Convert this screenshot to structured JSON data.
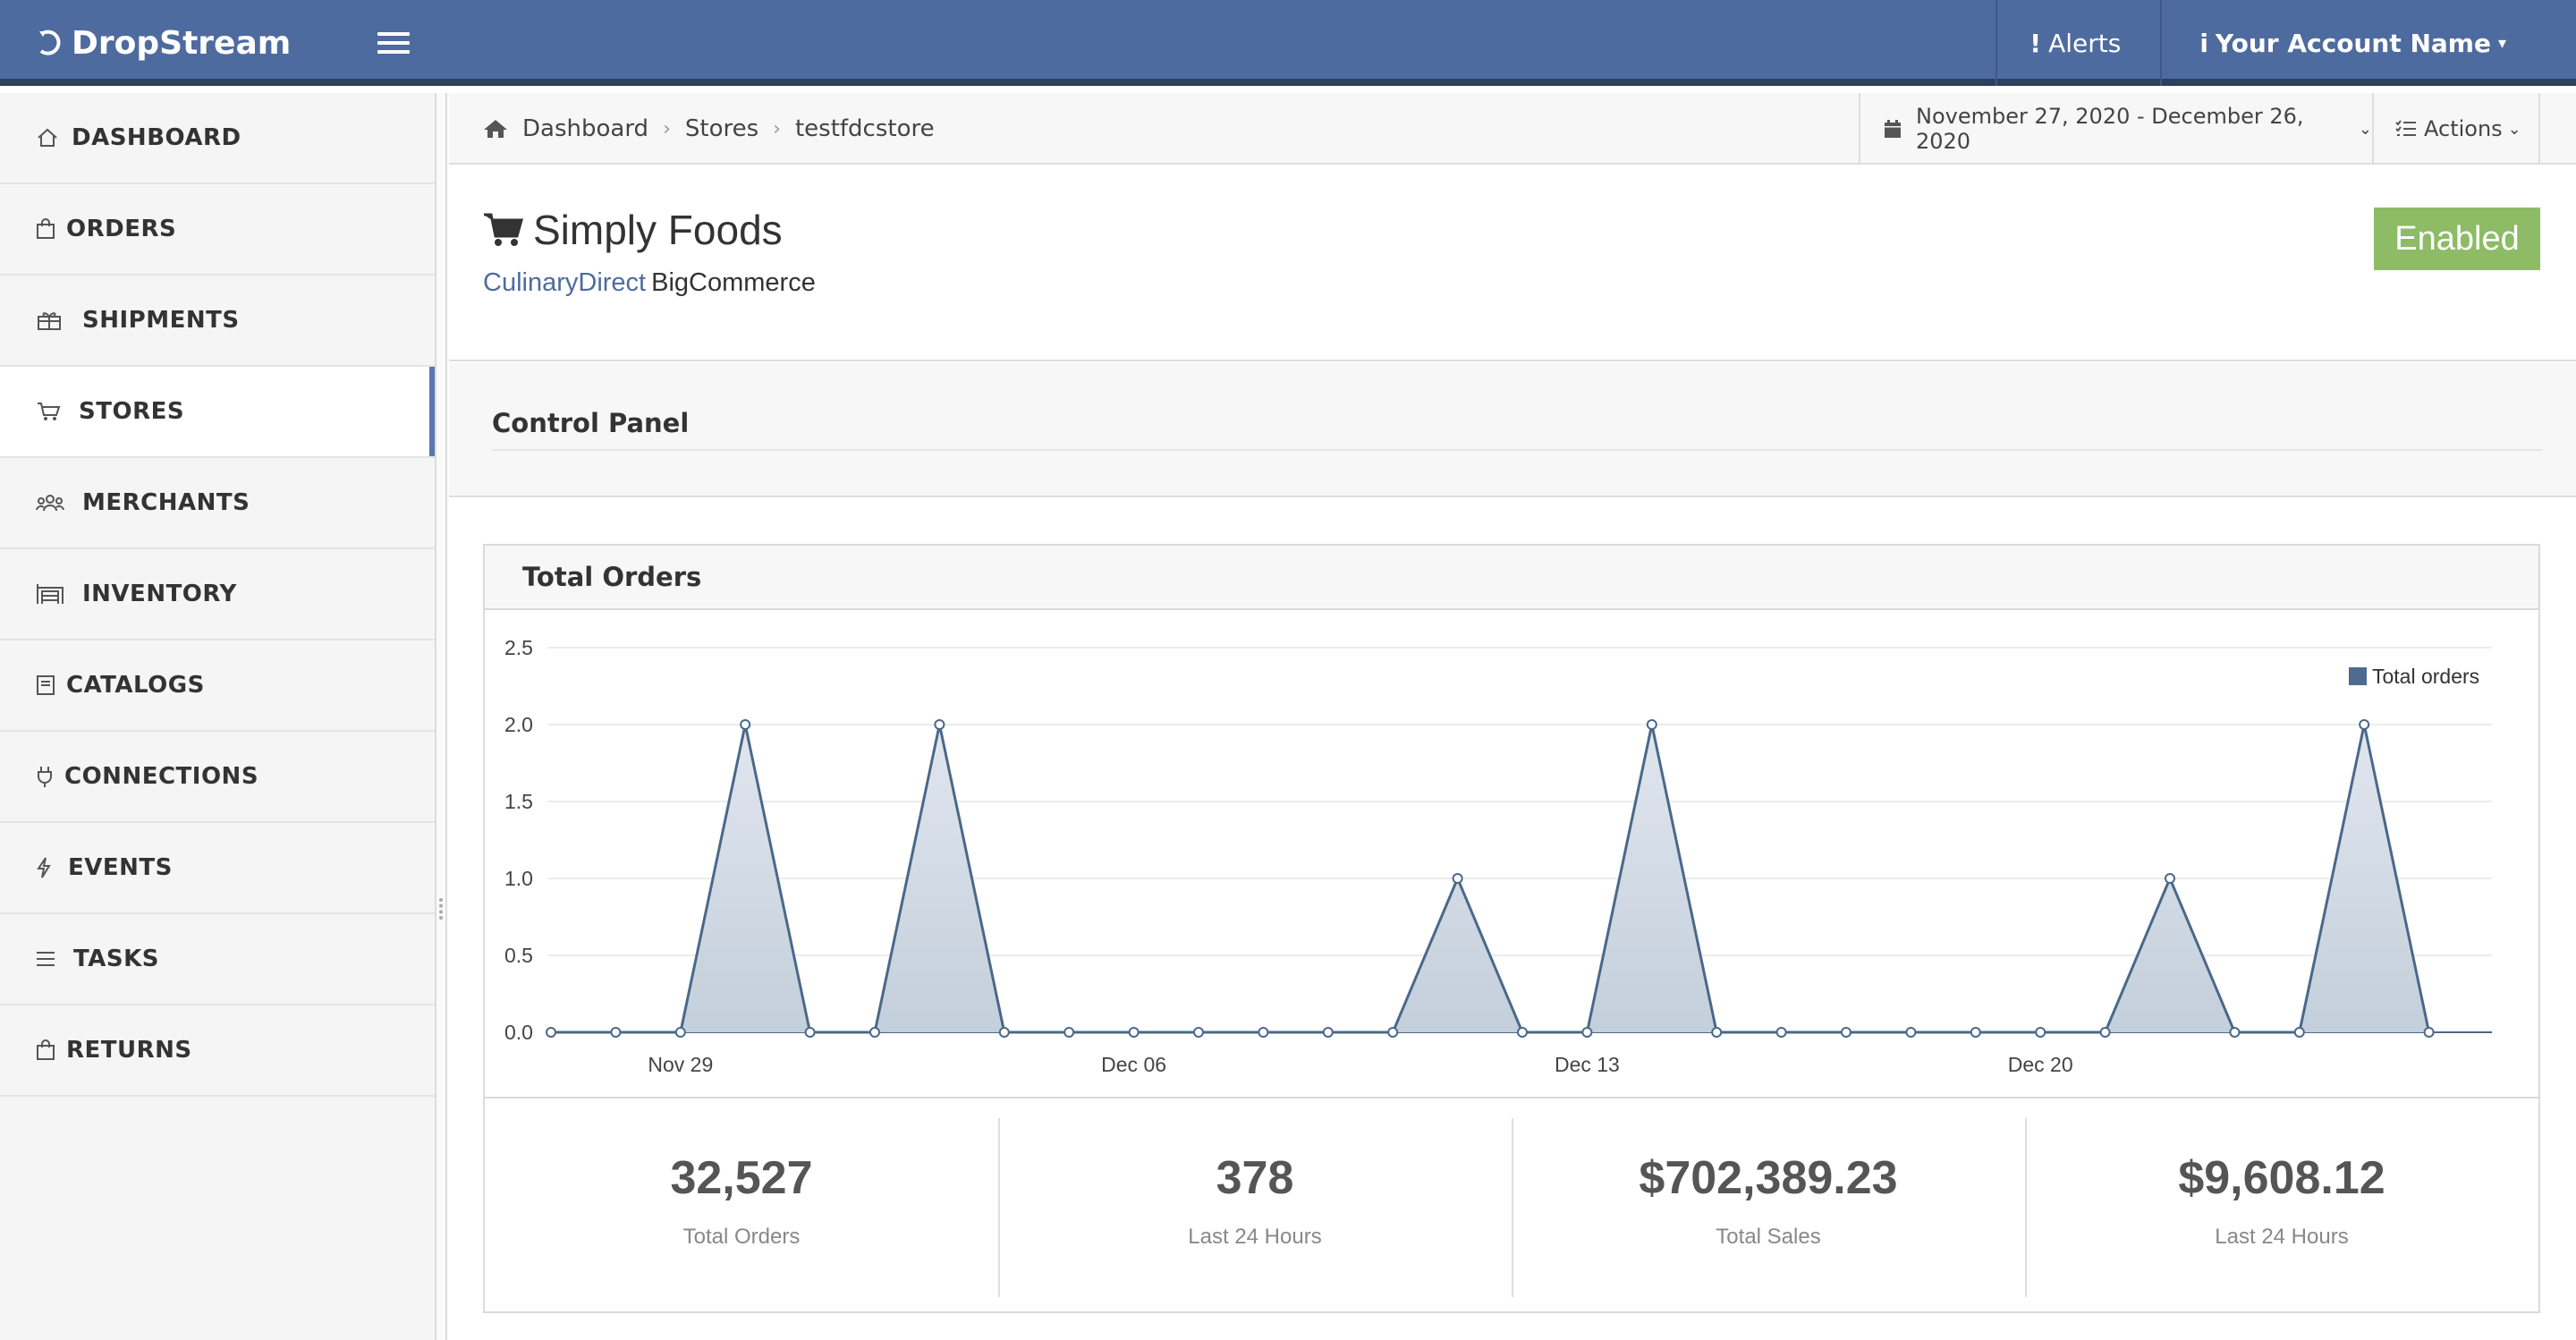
{
  "app": {
    "brand": "DropStream"
  },
  "navbar": {
    "alerts_label": "Alerts",
    "alerts_icon": "!",
    "account_label": "Your Account Name",
    "account_icon": "i"
  },
  "sidebar": {
    "items": [
      {
        "label": "DASHBOARD",
        "icon": "home-icon",
        "active": false
      },
      {
        "label": "ORDERS",
        "icon": "shopping-bag-icon",
        "active": false
      },
      {
        "label": "SHIPMENTS",
        "icon": "gift-icon",
        "active": false
      },
      {
        "label": "STORES",
        "icon": "cart-icon",
        "active": true
      },
      {
        "label": "MERCHANTS",
        "icon": "users-icon",
        "active": false
      },
      {
        "label": "INVENTORY",
        "icon": "warehouse-icon",
        "active": false
      },
      {
        "label": "CATALOGS",
        "icon": "book-icon",
        "active": false
      },
      {
        "label": "CONNECTIONS",
        "icon": "plug-icon",
        "active": false
      },
      {
        "label": "EVENTS",
        "icon": "bolt-icon",
        "active": false
      },
      {
        "label": "TASKS",
        "icon": "list-icon",
        "active": false
      },
      {
        "label": "RETURNS",
        "icon": "shopping-bag-icon",
        "active": false
      }
    ]
  },
  "breadcrumb": {
    "items": [
      "Dashboard",
      "Stores",
      "testfdcstore"
    ]
  },
  "toolbar": {
    "date_range": "November 27, 2020 - December 26, 2020",
    "actions_label": "Actions"
  },
  "store": {
    "name": "Simply Foods",
    "merchant": "CulinaryDirect",
    "platform": "BigCommerce",
    "status": "Enabled"
  },
  "control_panel": {
    "title": "Control Panel"
  },
  "orders_panel": {
    "title": "Total Orders"
  },
  "chart_data": {
    "type": "area",
    "series": [
      {
        "name": "Total orders",
        "x": [
          "Nov 27",
          "Nov 28",
          "Nov 29",
          "Nov 30",
          "Dec 01",
          "Dec 02",
          "Dec 03",
          "Dec 04",
          "Dec 05",
          "Dec 06",
          "Dec 07",
          "Dec 08",
          "Dec 09",
          "Dec 10",
          "Dec 11",
          "Dec 12",
          "Dec 13",
          "Dec 14",
          "Dec 15",
          "Dec 16",
          "Dec 17",
          "Dec 18",
          "Dec 19",
          "Dec 20",
          "Dec 21",
          "Dec 22",
          "Dec 23",
          "Dec 24",
          "Dec 25",
          "Dec 26"
        ],
        "values": [
          0,
          0,
          0,
          2,
          0,
          0,
          2,
          0,
          0,
          0,
          0,
          0,
          0,
          0,
          1,
          0,
          0,
          2,
          0,
          0,
          0,
          0,
          0,
          0,
          0,
          1,
          0,
          0,
          2,
          0
        ]
      }
    ],
    "x_ticks": [
      "Nov 29",
      "Dec 06",
      "Dec 13",
      "Dec 20"
    ],
    "y_ticks": [
      "0.0",
      "0.5",
      "1.0",
      "1.5",
      "2.0",
      "2.5"
    ],
    "ylim": [
      0,
      2.5
    ],
    "legend": "top-right",
    "grid": true,
    "colors": {
      "line": "#4a6889",
      "fill": "#c3cfdb",
      "legend_swatch": "#4e6b8f"
    }
  },
  "stats": [
    {
      "value": "32,527",
      "label": "Total Orders"
    },
    {
      "value": "378",
      "label": "Last 24 Hours"
    },
    {
      "value": "$702,389.23",
      "label": "Total Sales"
    },
    {
      "value": "$9,608.12",
      "label": "Last 24 Hours"
    }
  ]
}
